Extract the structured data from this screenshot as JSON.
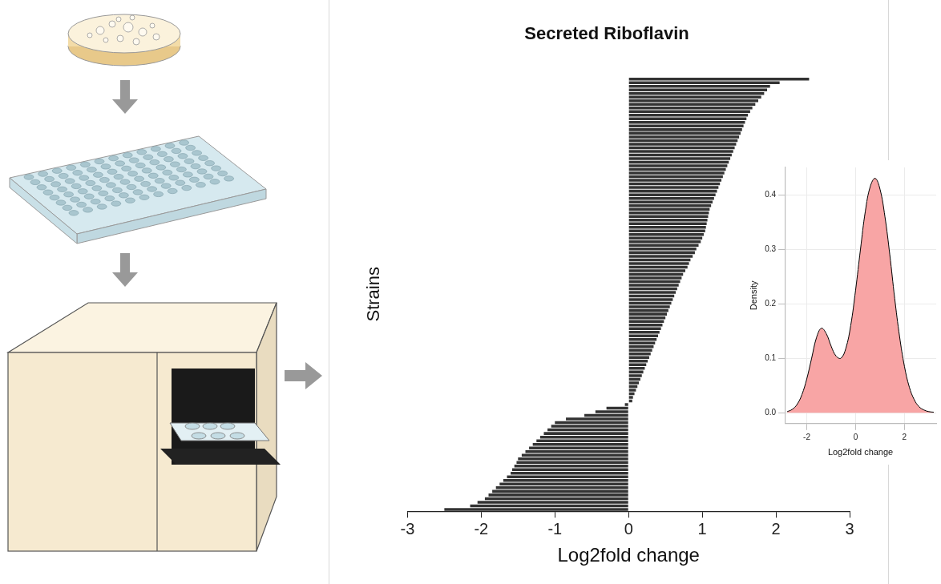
{
  "chart_data": [
    {
      "type": "bar",
      "title": "Secreted Riboflavin",
      "orientation": "horizontal",
      "categories": [
        null,
        null,
        null,
        null,
        null,
        null,
        null,
        null,
        null,
        null,
        null,
        null,
        null,
        null,
        null,
        null,
        null,
        null,
        null,
        null,
        null,
        null,
        null,
        null,
        null,
        null,
        null,
        null,
        null,
        null,
        null,
        null,
        null,
        null,
        null,
        null,
        null,
        null,
        null,
        null,
        null,
        null,
        null,
        null,
        null,
        null,
        null,
        null,
        null,
        null,
        null,
        null,
        null,
        null,
        null,
        null,
        null,
        null,
        null,
        null,
        null,
        null,
        null,
        null,
        null,
        null,
        null,
        null,
        null,
        null,
        null,
        null,
        null,
        null,
        null,
        null,
        null,
        null,
        null,
        null,
        null,
        null,
        null,
        null,
        null,
        null,
        null,
        null,
        null,
        null,
        null,
        null,
        null,
        null,
        null,
        null,
        null,
        null,
        null,
        null,
        null,
        null,
        null,
        null,
        null,
        null,
        null,
        null,
        null,
        null,
        null,
        null,
        null,
        null,
        null,
        null,
        null,
        null,
        null,
        null
      ],
      "values": [
        2.45,
        2.05,
        1.92,
        1.88,
        1.84,
        1.8,
        1.76,
        1.72,
        1.68,
        1.65,
        1.62,
        1.6,
        1.58,
        1.56,
        1.54,
        1.52,
        1.5,
        1.48,
        1.46,
        1.44,
        1.42,
        1.4,
        1.38,
        1.36,
        1.34,
        1.32,
        1.3,
        1.28,
        1.26,
        1.24,
        1.22,
        1.2,
        1.18,
        1.16,
        1.14,
        1.12,
        1.1,
        1.09,
        1.08,
        1.07,
        1.06,
        1.05,
        1.04,
        1.02,
        1.0,
        0.98,
        0.95,
        0.92,
        0.9,
        0.87,
        0.84,
        0.82,
        0.8,
        0.77,
        0.74,
        0.72,
        0.7,
        0.68,
        0.66,
        0.64,
        0.62,
        0.6,
        0.58,
        0.56,
        0.54,
        0.52,
        0.5,
        0.48,
        0.46,
        0.44,
        0.42,
        0.4,
        0.38,
        0.36,
        0.34,
        0.32,
        0.3,
        0.28,
        0.26,
        0.24,
        0.22,
        0.2,
        0.18,
        0.16,
        0.14,
        0.12,
        0.1,
        0.08,
        0.06,
        0.05,
        -0.05,
        -0.3,
        -0.45,
        -0.6,
        -0.85,
        -1.0,
        -1.05,
        -1.1,
        -1.15,
        -1.2,
        -1.25,
        -1.3,
        -1.35,
        -1.4,
        -1.45,
        -1.5,
        -1.52,
        -1.55,
        -1.58,
        -1.6,
        -1.65,
        -1.7,
        -1.75,
        -1.8,
        -1.85,
        -1.9,
        -1.95,
        -2.05,
        -2.15,
        -2.5
      ],
      "color": "#333333",
      "xlim": [
        -3,
        3
      ],
      "xticks": [
        -3,
        -2,
        -1,
        0,
        1,
        2,
        3
      ],
      "x_label": "Log2fold change",
      "y_label": "Strains",
      "tick_labels": "x",
      "grid": false
    },
    {
      "type": "area",
      "x": [
        -2.8,
        -2.6,
        -2.4,
        -2.2,
        -2.0,
        -1.8,
        -1.6,
        -1.4,
        -1.2,
        -1.0,
        -0.8,
        -0.6,
        -0.4,
        -0.2,
        0,
        0.2,
        0.4,
        0.6,
        0.8,
        1.0,
        1.2,
        1.4,
        1.6,
        1.8,
        2.0,
        2.2,
        2.4,
        2.6,
        2.8,
        3.0,
        3.2
      ],
      "values": [
        0.002,
        0.006,
        0.015,
        0.033,
        0.062,
        0.1,
        0.138,
        0.155,
        0.145,
        0.122,
        0.104,
        0.1,
        0.118,
        0.16,
        0.225,
        0.3,
        0.37,
        0.415,
        0.43,
        0.41,
        0.36,
        0.29,
        0.21,
        0.14,
        0.085,
        0.047,
        0.024,
        0.011,
        0.005,
        0.002,
        0.001
      ],
      "color": "#f8a5a5",
      "xlim": [
        -2.9,
        3.3
      ],
      "xticks": [
        -2,
        0,
        2
      ],
      "ylim": [
        -0.02,
        0.45
      ],
      "yticks": [
        {
          "value": 0,
          "label": "0.0"
        },
        {
          "value": 0.1,
          "label": "0.1"
        },
        {
          "value": 0.2,
          "label": "0.2"
        },
        {
          "value": 0.3,
          "label": "0.3"
        },
        {
          "value": 0.4,
          "label": "0.4"
        }
      ],
      "x_label": "Log2fold change",
      "y_label": "Density",
      "grid": true
    }
  ]
}
